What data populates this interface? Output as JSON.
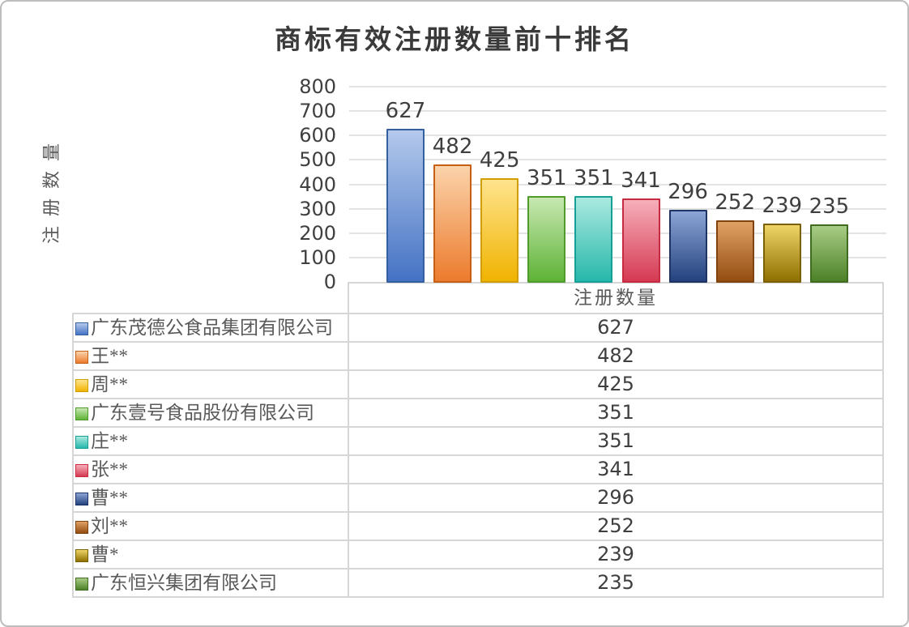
{
  "chart_data": {
    "type": "bar",
    "title": "商标有效注册数量前十排名",
    "ylabel": "注册数量",
    "value_column_header": "注册数量",
    "ylim": [
      0,
      800
    ],
    "ytick_step": 100,
    "yticks": [
      0,
      100,
      200,
      300,
      400,
      500,
      600,
      700,
      800
    ],
    "grid": true,
    "legend_position": "data-table-below-left-column",
    "categories": [
      "广东茂德公食品集团有限公司",
      "王**",
      "周**",
      "广东壹号食品股份有限公司",
      "庄**",
      "张**",
      "曹**",
      "刘**",
      "曹*",
      "广东恒兴集团有限公司"
    ],
    "values": [
      627,
      482,
      425,
      351,
      351,
      341,
      296,
      252,
      239,
      235
    ],
    "bar_colors": [
      {
        "top": "#b4c9ec",
        "bottom": "#4472c4",
        "border": "#35609f"
      },
      {
        "top": "#fbd3ab",
        "bottom": "#ec7b2d",
        "border": "#c55f14"
      },
      {
        "top": "#ffe48d",
        "bottom": "#f0b301",
        "border": "#d29d02"
      },
      {
        "top": "#c8e8b2",
        "bottom": "#5eb336",
        "border": "#4f9c2c"
      },
      {
        "top": "#abe9e0",
        "bottom": "#27b8ab",
        "border": "#169f96"
      },
      {
        "top": "#f6afba",
        "bottom": "#d53a53",
        "border": "#c62b42"
      },
      {
        "top": "#8ca5d6",
        "bottom": "#24427e",
        "border": "#1d3464"
      },
      {
        "top": "#e0a165",
        "bottom": "#944d11",
        "border": "#7f430f"
      },
      {
        "top": "#eed468",
        "bottom": "#8f7000",
        "border": "#7a6000"
      },
      {
        "top": "#a8cc85",
        "bottom": "#4c8128",
        "border": "#3f6c21"
      }
    ]
  },
  "colors": {
    "frame_border": "#bdbdbd",
    "gridline": "#e3e3e3",
    "table_border": "#d6d6d6",
    "tick_text": "#3f3f3f",
    "cjk_text": "#595959",
    "title_text": "#3a3a3a"
  }
}
